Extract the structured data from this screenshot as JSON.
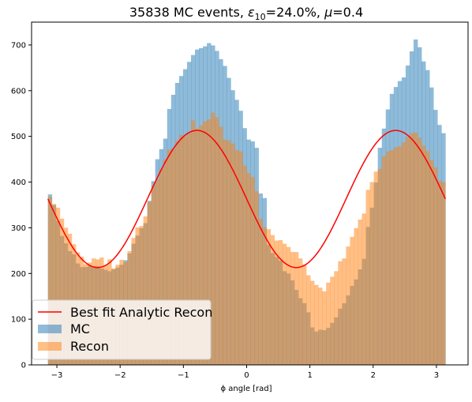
{
  "chart_data": {
    "type": "histogram",
    "title_parts": {
      "count": "35838",
      "prefix": "MC events, ",
      "eps_symbol": "ε",
      "eps_sub": "10",
      "eps_value": "=24.0%, ",
      "mu_symbol": "μ",
      "mu_value": "=0.4"
    },
    "xlabel": "ϕ angle [rad]",
    "ylabel": "",
    "xlim": [
      -3.4,
      3.5
    ],
    "ylim": [
      0,
      750
    ],
    "xticks": [
      -3,
      -2,
      -1,
      0,
      1,
      2,
      3
    ],
    "yticks": [
      0,
      100,
      200,
      300,
      400,
      500,
      600,
      700
    ],
    "grid": false,
    "legend_position": "lower-left",
    "bin_range": [
      -3.14159,
      3.14159
    ],
    "n_bins": 100,
    "series": [
      {
        "name": "MC",
        "kind": "hist",
        "color": "#1f77b4",
        "alpha": 0.5,
        "values": [
          373,
          350,
          315,
          282,
          266,
          249,
          242,
          222,
          214,
          214,
          217,
          216,
          216,
          211,
          208,
          205,
          209,
          213,
          219,
          229,
          244,
          265,
          283,
          299,
          310,
          359,
          402,
          450,
          472,
          495,
          560,
          591,
          617,
          632,
          647,
          663,
          678,
          690,
          693,
          697,
          704,
          699,
          687,
          669,
          654,
          628,
          601,
          580,
          556,
          518,
          493,
          489,
          475,
          375,
          365,
          263,
          245,
          236,
          228,
          205,
          200,
          185,
          164,
          146,
          135,
          115,
          82,
          73,
          77,
          76,
          81,
          92,
          104,
          123,
          135,
          152,
          173,
          187,
          209,
          232,
          302,
          344,
          399,
          475,
          517,
          559,
          593,
          608,
          621,
          629,
          655,
          686,
          712,
          695,
          664,
          645,
          607,
          558,
          525,
          507
        ]
      },
      {
        "name": "Recon",
        "kind": "hist",
        "color": "#ff7f0e",
        "alpha": 0.5,
        "values": [
          367,
          352,
          344,
          320,
          300,
          287,
          264,
          246,
          237,
          220,
          224,
          233,
          231,
          235,
          218,
          231,
          211,
          219,
          230,
          225,
          249,
          278,
          301,
          304,
          325,
          356,
          392,
          407,
          429,
          450,
          471,
          472,
          490,
          503,
          500,
          507,
          535,
          517,
          524,
          533,
          537,
          552,
          542,
          521,
          493,
          491,
          484,
          470,
          467,
          436,
          420,
          411,
          380,
          320,
          301,
          297,
          284,
          272,
          273,
          265,
          258,
          247,
          247,
          233,
          219,
          196,
          184,
          175,
          169,
          161,
          180,
          193,
          205,
          227,
          233,
          259,
          280,
          299,
          318,
          331,
          383,
          400,
          423,
          429,
          456,
          467,
          470,
          476,
          478,
          487,
          498,
          507,
          508,
          497,
          480,
          468,
          448,
          432,
          403,
          400
        ]
      },
      {
        "name": "Best fit Analytic Recon",
        "kind": "line",
        "color": "#ff0000",
        "function": {
          "form": "A*(1 + B*cos(2*phi - phi0)) cosine fit",
          "center": 363,
          "amplitude": 150,
          "peaks_at": [
            -0.785,
            2.356
          ]
        }
      }
    ]
  }
}
